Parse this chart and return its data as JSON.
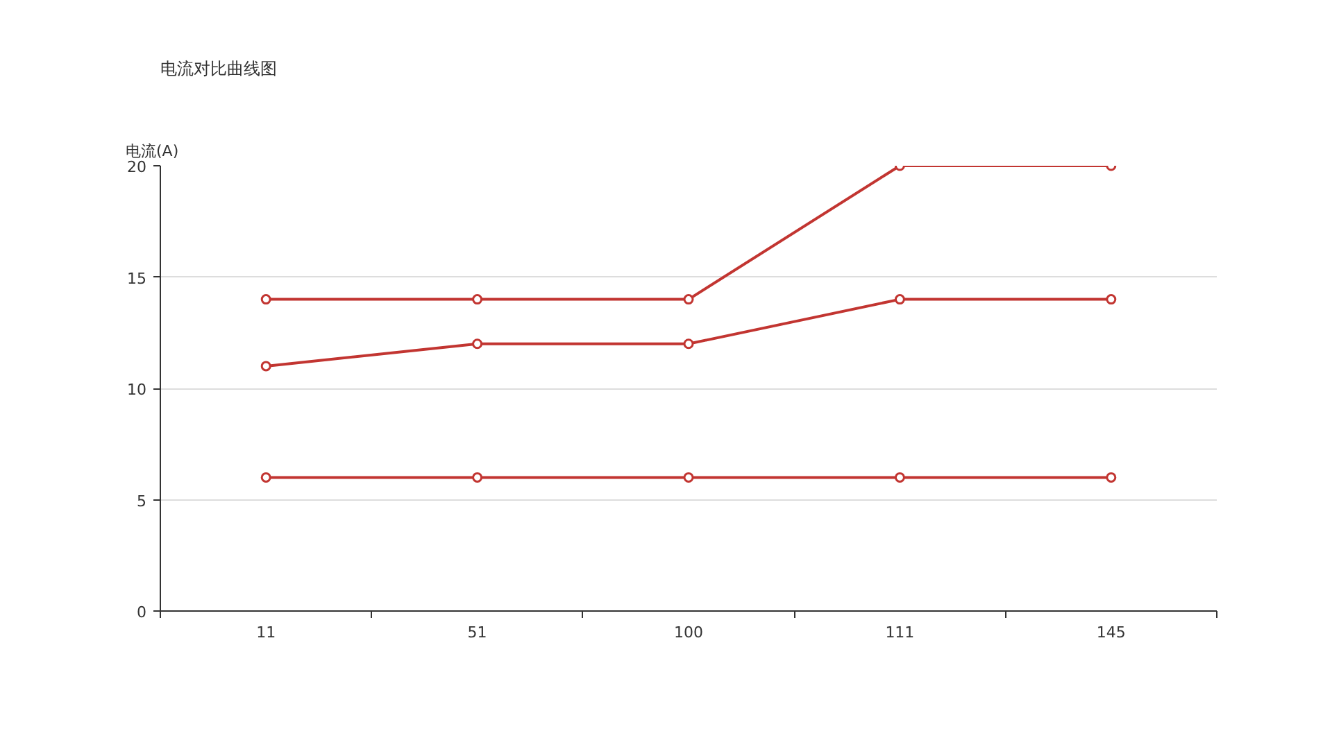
{
  "chart_data": {
    "type": "line",
    "title": "电流对比曲线图",
    "ylabel": "电流(A)",
    "categories": [
      "11",
      "51",
      "100",
      "111",
      "145"
    ],
    "series": [
      {
        "color": "#c23531",
        "values": [
          14,
          14,
          14,
          20,
          20
        ]
      },
      {
        "color": "#c23531",
        "values": [
          11,
          12,
          12,
          14,
          14
        ]
      },
      {
        "color": "#c23531",
        "values": [
          6,
          6,
          6,
          6,
          6
        ]
      }
    ],
    "ylim": [
      0,
      20
    ],
    "yticks": [
      0,
      5,
      10,
      15,
      20
    ],
    "grid": "y",
    "marker": "circle",
    "line_style": "solid"
  }
}
